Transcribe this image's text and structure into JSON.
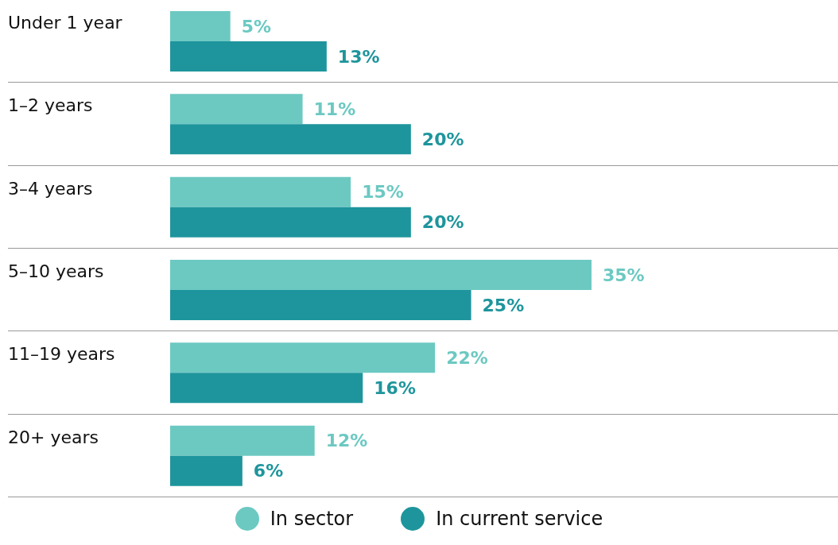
{
  "chart_data": {
    "type": "bar",
    "orientation": "horizontal",
    "categories": [
      "Under 1 year",
      "1–2 years",
      "3–4 years",
      "5–10 years",
      "11–19 years",
      "20+ years"
    ],
    "series": [
      {
        "name": "In sector",
        "color": "#6cc9c2",
        "values": [
          5,
          11,
          15,
          35,
          22,
          12
        ],
        "value_labels": [
          "5%",
          "11%",
          "15%",
          "35%",
          "22%",
          "12%"
        ]
      },
      {
        "name": "In current service",
        "color": "#1e959c",
        "values": [
          13,
          20,
          20,
          25,
          16,
          6
        ],
        "value_labels": [
          "13%",
          "20%",
          "20%",
          "25%",
          "16%",
          "6%"
        ]
      }
    ],
    "legend": "bottom"
  }
}
